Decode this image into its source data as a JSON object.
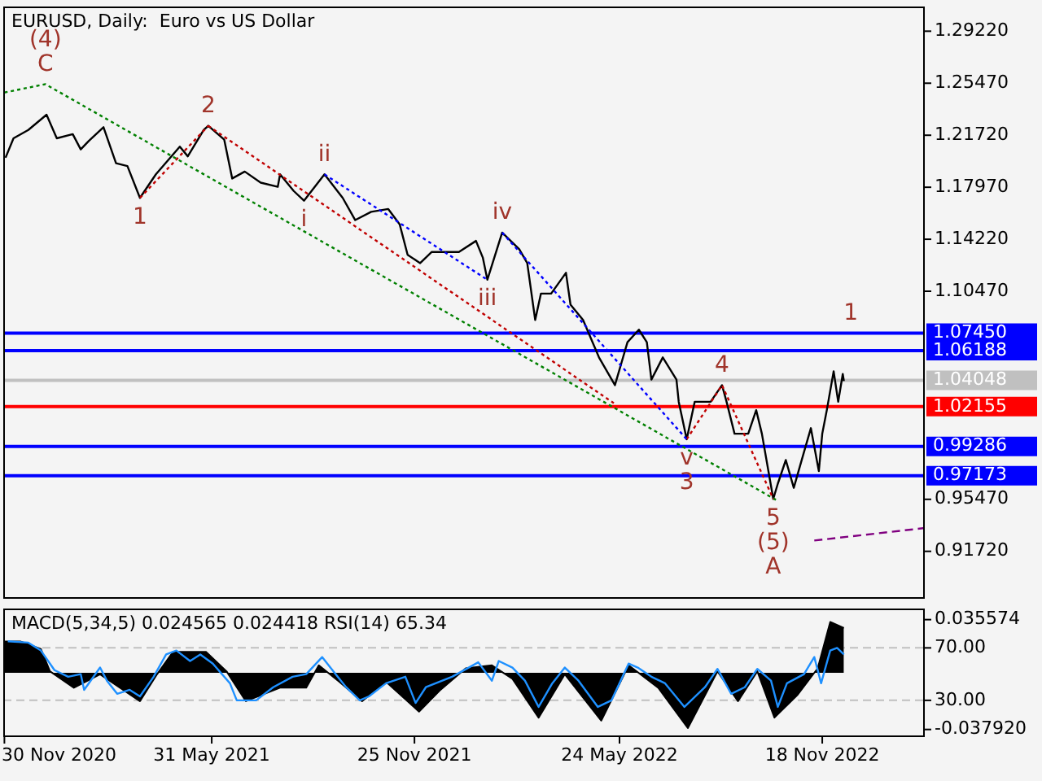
{
  "chart_data": [
    {
      "type": "line",
      "title": "EURUSD, Daily:  Euro vs US Dollar",
      "tick_labels": "y",
      "xlim": [
        "2020-11-29",
        "2023-02-16"
      ],
      "ylim": [
        0.883,
        1.31
      ],
      "yticks": [
        {
          "value": 1.2922,
          "label": "1.29220"
        },
        {
          "value": 1.2547,
          "label": "1.25470"
        },
        {
          "value": 1.2172,
          "label": "1.21720"
        },
        {
          "value": 1.1797,
          "label": "1.17970"
        },
        {
          "value": 1.1422,
          "label": "1.14220"
        },
        {
          "value": 1.1047,
          "label": "1.10470"
        },
        {
          "value": 0.9547,
          "label": "0.95470"
        },
        {
          "value": 0.9172,
          "label": "0.91720"
        }
      ],
      "series": [
        {
          "type": "line",
          "color": "#000000",
          "x": [
            "2020-12-01",
            "2020-12-08",
            "2020-12-21",
            "2021-01-06",
            "2021-01-15",
            "2021-01-29",
            "2021-02-05",
            "2021-02-12",
            "2021-02-25",
            "2021-03-08",
            "2021-03-18",
            "2021-03-29",
            "2021-04-12",
            "2021-05-03",
            "2021-05-10",
            "2021-05-24",
            "2021-05-28",
            "2021-06-11",
            "2021-06-18",
            "2021-06-29",
            "2021-07-13",
            "2021-07-28",
            "2021-07-30",
            "2021-08-11",
            "2021-08-20",
            "2021-09-07",
            "2021-09-23",
            "2021-10-04",
            "2021-10-18",
            "2021-11-02",
            "2021-11-12",
            "2021-11-19",
            "2021-11-30",
            "2021-12-10",
            "2022-01-03",
            "2022-01-18",
            "2022-01-24",
            "2022-01-28",
            "2022-02-10",
            "2022-02-25",
            "2022-03-04",
            "2022-03-11",
            "2022-03-16",
            "2022-03-25",
            "2022-04-07",
            "2022-04-11",
            "2022-04-22",
            "2022-05-06",
            "2022-05-20",
            "2022-05-31",
            "2022-06-10",
            "2022-06-17",
            "2022-06-21",
            "2022-07-01",
            "2022-07-13",
            "2022-07-15",
            "2022-07-22",
            "2022-07-29",
            "2022-08-12",
            "2022-08-22",
            "2022-08-26",
            "2022-09-02",
            "2022-09-14",
            "2022-09-21",
            "2022-09-26",
            "2022-10-06",
            "2022-10-10",
            "2022-10-17",
            "2022-10-24",
            "2022-11-01",
            "2022-11-08",
            "2022-11-15",
            "2022-11-18",
            "2022-11-22",
            "2022-11-28",
            "2022-12-02",
            "2022-12-06",
            "2022-12-07"
          ],
          "values": [
            1.201,
            1.215,
            1.221,
            1.232,
            1.215,
            1.218,
            1.207,
            1.213,
            1.223,
            1.197,
            1.195,
            1.172,
            1.189,
            1.209,
            1.202,
            1.221,
            1.224,
            1.214,
            1.186,
            1.191,
            1.183,
            1.18,
            1.189,
            1.177,
            1.17,
            1.189,
            1.172,
            1.156,
            1.162,
            1.164,
            1.153,
            1.131,
            1.125,
            1.133,
            1.133,
            1.141,
            1.129,
            1.113,
            1.147,
            1.135,
            1.125,
            1.084,
            1.103,
            1.103,
            1.118,
            1.095,
            1.084,
            1.057,
            1.037,
            1.068,
            1.077,
            1.068,
            1.041,
            1.057,
            1.041,
            1.025,
            0.998,
            1.025,
            1.025,
            1.037,
            1.025,
            1.002,
            1.002,
            1.019,
            1.002,
            0.955,
            0.966,
            0.983,
            0.963,
            0.986,
            1.006,
            0.975,
            1.002,
            1.019,
            1.047,
            1.025,
            1.045,
            1.04
          ]
        },
        {
          "type": "line",
          "color": "#008000",
          "line_style": "dotted",
          "x": [
            "2020-11-30",
            "2021-01-05",
            "2022-10-09"
          ],
          "values": [
            1.248,
            1.254,
            0.954
          ]
        },
        {
          "type": "line",
          "color": "#c00000",
          "line_style": "dotted",
          "x": [
            "2021-03-29",
            "2021-05-28"
          ],
          "values": [
            1.172,
            1.224
          ]
        },
        {
          "type": "line",
          "color": "#c00000",
          "line_style": "dotted",
          "x": [
            "2021-05-28",
            "2022-05-19"
          ],
          "values": [
            1.224,
            1.024
          ]
        },
        {
          "type": "line",
          "color": "#c00000",
          "line_style": "dotted",
          "x": [
            "2022-07-22",
            "2022-08-22",
            "2022-10-06"
          ],
          "values": [
            0.998,
            1.037,
            0.955
          ]
        },
        {
          "type": "line",
          "color": "#0000ff",
          "line_style": "dotted",
          "x": [
            "2021-09-07",
            "2022-01-28"
          ],
          "values": [
            1.189,
            1.113
          ]
        },
        {
          "type": "line",
          "color": "#0000ff",
          "line_style": "dotted",
          "x": [
            "2022-02-10",
            "2022-07-22"
          ],
          "values": [
            1.147,
            0.998
          ]
        },
        {
          "type": "line",
          "color": "#800080",
          "line_style": "dashed",
          "x": [
            "2022-11-11",
            "2023-02-16"
          ],
          "values": [
            0.925,
            0.934
          ]
        }
      ],
      "ref_lines": [
        {
          "axis": "y",
          "value": 1.0745,
          "label": "1.07450",
          "color": "#0000ff"
        },
        {
          "axis": "y",
          "value": 1.06188,
          "label": "1.06188",
          "color": "#0000ff"
        },
        {
          "axis": "y",
          "value": 1.04048,
          "label": "1.04048",
          "color": "#c0c0c0"
        },
        {
          "axis": "y",
          "value": 1.02155,
          "label": "1.02155",
          "color": "#ff0000"
        },
        {
          "axis": "y",
          "value": 0.99286,
          "label": "0.99286",
          "color": "#0000ff"
        },
        {
          "axis": "y",
          "value": 0.97173,
          "label": "0.97173",
          "color": "#0000ff"
        }
      ],
      "annotations": [
        {
          "text": "C",
          "x": "2021-01-05",
          "y": 1.254
        },
        {
          "text": "(4)",
          "x": "2021-01-05",
          "y": 1.254
        },
        {
          "text": "1",
          "x": "2021-03-29",
          "y": 1.172
        },
        {
          "text": "2",
          "x": "2021-05-28",
          "y": 1.224
        },
        {
          "text": "i",
          "x": "2021-08-20",
          "y": 1.17
        },
        {
          "text": "ii",
          "x": "2021-09-07",
          "y": 1.189
        },
        {
          "text": "iii",
          "x": "2022-01-28",
          "y": 1.113
        },
        {
          "text": "iv",
          "x": "2022-02-10",
          "y": 1.147
        },
        {
          "text": "1",
          "x": "2022-12-13",
          "y": 1.0745
        },
        {
          "text": "4",
          "x": "2022-08-22",
          "y": 1.037
        },
        {
          "text": "v",
          "x": "2022-07-22",
          "y": 0.998
        },
        {
          "text": "3",
          "x": "2022-07-22",
          "y": 0.998
        },
        {
          "text": "5",
          "x": "2022-10-06",
          "y": 0.955
        },
        {
          "text": "(5)",
          "x": "2022-10-06",
          "y": 0.955
        },
        {
          "text": "A",
          "x": "2022-10-06",
          "y": 0.955
        }
      ]
    },
    {
      "type": "line",
      "title": "MACD(5,34,5) 0.024565 0.024418 RSI(14) 65.34",
      "xlim": [
        "2020-11-29",
        "2023-02-16"
      ],
      "xticks": [
        {
          "value": "2020-11-30",
          "label": "30 Nov 2020"
        },
        {
          "value": "2021-05-31",
          "label": "31 May 2021"
        },
        {
          "value": "2021-11-25",
          "label": "25 Nov 2021"
        },
        {
          "value": "2022-05-24",
          "label": "24 May 2022"
        },
        {
          "value": "2022-11-18",
          "label": "18 Nov 2022"
        }
      ],
      "ylim": [
        2,
        100
      ],
      "yticks": [
        {
          "value": 70,
          "label": "70.00"
        },
        {
          "value": 30,
          "label": "30.00"
        }
      ],
      "y2lim": [
        -0.043,
        0.043
      ],
      "y2ticks": [
        {
          "value": 0.035574,
          "label": "0.035574"
        },
        {
          "value": -0.03792,
          "label": "-0.037920"
        }
      ],
      "series": [
        {
          "type": "area",
          "axis": "y2",
          "color": "#000000",
          "x": [
            "2020-11-30",
            "2020-12-14",
            "2021-01-01",
            "2021-01-09",
            "2021-01-30",
            "2021-02-22",
            "2021-03-29",
            "2021-04-13",
            "2021-04-27",
            "2021-05-26",
            "2021-06-13",
            "2021-06-30",
            "2021-07-30",
            "2021-08-22",
            "2021-09-02",
            "2021-09-20",
            "2021-10-10",
            "2021-10-31",
            "2021-11-29",
            "2021-12-17",
            "2022-01-09",
            "2022-02-01",
            "2022-02-19",
            "2022-03-14",
            "2022-04-06",
            "2022-05-08",
            "2022-06-01",
            "2022-06-27",
            "2022-07-23",
            "2022-08-18",
            "2022-09-05",
            "2022-09-22",
            "2022-10-07",
            "2022-10-27",
            "2022-11-14",
            "2022-11-25",
            "2022-12-07"
          ],
          "values": [
            0.021,
            0.021,
            0.016,
            0.001,
            -0.01,
            -0.001,
            -0.019,
            -0.001,
            0.014,
            0.014,
            0.001,
            -0.019,
            -0.01,
            -0.01,
            0.005,
            -0.006,
            -0.019,
            -0.006,
            -0.026,
            -0.012,
            0.003,
            0.005,
            -0.004,
            -0.03,
            -0.001,
            -0.032,
            0.005,
            -0.01,
            -0.037,
            0.001,
            -0.019,
            0.001,
            -0.03,
            -0.015,
            0.003,
            0.034,
            0.03
          ]
        },
        {
          "type": "line",
          "axis": "y",
          "color": "#1e90ff",
          "x": [
            "2020-12-03",
            "2020-12-21",
            "2021-01-01",
            "2021-01-13",
            "2021-01-25",
            "2021-02-05",
            "2021-02-08",
            "2021-02-22",
            "2021-02-28",
            "2021-03-09",
            "2021-03-20",
            "2021-03-29",
            "2021-04-10",
            "2021-04-21",
            "2021-04-30",
            "2021-05-12",
            "2021-05-21",
            "2021-06-01",
            "2021-06-16",
            "2021-06-22",
            "2021-07-09",
            "2021-07-24",
            "2021-08-10",
            "2021-08-22",
            "2021-09-05",
            "2021-09-14",
            "2021-09-26",
            "2021-10-08",
            "2021-10-16",
            "2021-10-31",
            "2021-11-17",
            "2021-11-26",
            "2021-12-05",
            "2021-12-28",
            "2022-01-20",
            "2022-02-01",
            "2022-02-07",
            "2022-02-19",
            "2022-03-02",
            "2022-03-14",
            "2022-03-26",
            "2022-04-06",
            "2022-04-18",
            "2022-05-05",
            "2022-05-17",
            "2022-06-01",
            "2022-06-09",
            "2022-06-21",
            "2022-07-03",
            "2022-07-20",
            "2022-08-07",
            "2022-08-18",
            "2022-08-30",
            "2022-09-11",
            "2022-09-22",
            "2022-10-04",
            "2022-10-10",
            "2022-10-18",
            "2022-11-02",
            "2022-11-11",
            "2022-11-17",
            "2022-11-25",
            "2022-12-01",
            "2022-12-07"
          ],
          "values": [
            75,
            74,
            68,
            53,
            48,
            50,
            38,
            55,
            45,
            35,
            38,
            33,
            48,
            65,
            68,
            60,
            65,
            58,
            43,
            30,
            30,
            40,
            48,
            50,
            63,
            53,
            40,
            30,
            33,
            43,
            48,
            28,
            40,
            48,
            59,
            45,
            60,
            55,
            45,
            25,
            43,
            55,
            45,
            25,
            30,
            58,
            55,
            48,
            43,
            25,
            40,
            54,
            35,
            40,
            54,
            45,
            25,
            43,
            50,
            63,
            43,
            68,
            70,
            65
          ]
        }
      ],
      "ref_lines": [
        {
          "axis": "y",
          "value": 70,
          "color": "#c0c0c0",
          "line_style": "dashed"
        },
        {
          "axis": "y",
          "value": 30,
          "color": "#c0c0c0",
          "line_style": "dashed"
        }
      ]
    }
  ]
}
